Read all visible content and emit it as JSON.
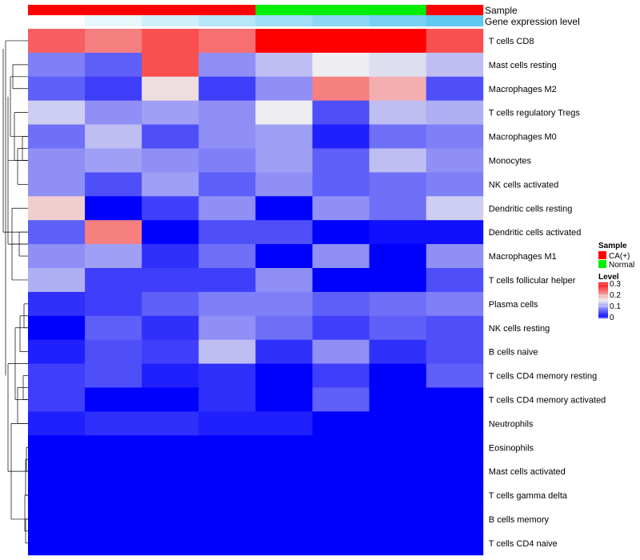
{
  "chart_data": {
    "type": "heatmap",
    "column_annotations": [
      {
        "label": "Sample"
      },
      {
        "label": "Gene expression level"
      }
    ],
    "columns": [
      {
        "sample": "CA(+)",
        "gene_expression_level": 0.0
      },
      {
        "sample": "CA(+)",
        "gene_expression_level": 0.15
      },
      {
        "sample": "CA(+)",
        "gene_expression_level": 0.3
      },
      {
        "sample": "CA(+)",
        "gene_expression_level": 0.45
      },
      {
        "sample": "Normal",
        "gene_expression_level": 0.6
      },
      {
        "sample": "Normal",
        "gene_expression_level": 0.72
      },
      {
        "sample": "Normal",
        "gene_expression_level": 0.85
      },
      {
        "sample": "CA(+)",
        "gene_expression_level": 1.0
      }
    ],
    "rows": [
      "T cells CD8",
      "Mast cells resting",
      "Macrophages M2",
      "T cells regulatory  Tregs",
      "Macrophages M0",
      "Monocytes",
      "NK cells activated",
      "Dendritic cells resting",
      "Dendritic cells activated",
      "Macrophages M1",
      "T cells follicular helper",
      "Plasma cells",
      "NK cells resting",
      "B cells naive",
      "T cells CD4 memory resting",
      "T cells CD4 memory activated",
      "Neutrophils",
      "Eosinophils",
      "Mast cells activated",
      "T cells gamma delta",
      "B cells memory",
      "T cells CD4 naive"
    ],
    "values": [
      [
        0.24,
        0.22,
        0.25,
        0.23,
        0.3,
        0.3,
        0.3,
        0.25
      ],
      [
        0.08,
        0.06,
        0.25,
        0.09,
        0.12,
        0.15,
        0.14,
        0.12
      ],
      [
        0.06,
        0.04,
        0.16,
        0.04,
        0.09,
        0.22,
        0.19,
        0.05
      ],
      [
        0.13,
        0.09,
        0.1,
        0.09,
        0.15,
        0.05,
        0.12,
        0.11
      ],
      [
        0.07,
        0.12,
        0.05,
        0.09,
        0.1,
        0.02,
        0.07,
        0.08
      ],
      [
        0.09,
        0.1,
        0.09,
        0.08,
        0.1,
        0.06,
        0.12,
        0.09
      ],
      [
        0.09,
        0.05,
        0.1,
        0.06,
        0.09,
        0.06,
        0.07,
        0.08
      ],
      [
        0.17,
        0.0,
        0.04,
        0.09,
        0.0,
        0.09,
        0.07,
        0.13
      ],
      [
        0.06,
        0.22,
        0.0,
        0.05,
        0.05,
        0.0,
        0.01,
        0.01
      ],
      [
        0.09,
        0.1,
        0.03,
        0.07,
        0.0,
        0.09,
        0.0,
        0.09
      ],
      [
        0.11,
        0.04,
        0.04,
        0.04,
        0.09,
        0.0,
        0.0,
        0.05
      ],
      [
        0.03,
        0.04,
        0.06,
        0.08,
        0.08,
        0.06,
        0.07,
        0.08
      ],
      [
        0.0,
        0.06,
        0.03,
        0.09,
        0.07,
        0.04,
        0.06,
        0.05
      ],
      [
        0.02,
        0.05,
        0.04,
        0.12,
        0.03,
        0.09,
        0.03,
        0.05
      ],
      [
        0.04,
        0.05,
        0.02,
        0.03,
        0.0,
        0.04,
        0.0,
        0.06
      ],
      [
        0.04,
        0.0,
        0.0,
        0.03,
        0.0,
        0.06,
        0.0,
        0.0
      ],
      [
        0.02,
        0.03,
        0.03,
        0.02,
        0.02,
        0.0,
        0.0,
        0.0
      ],
      [
        0.0,
        0.0,
        0.0,
        0.0,
        0.0,
        0.0,
        0.0,
        0.0
      ],
      [
        0.0,
        0.0,
        0.0,
        0.0,
        0.0,
        0.0,
        0.0,
        0.0
      ],
      [
        0.0,
        0.0,
        0.0,
        0.0,
        0.0,
        0.0,
        0.0,
        0.0
      ],
      [
        0.0,
        0.0,
        0.0,
        0.0,
        0.0,
        0.0,
        0.0,
        0.0
      ],
      [
        0.0,
        0.0,
        0.0,
        0.0,
        0.0,
        0.0,
        0.0,
        0.0
      ]
    ],
    "color_scale": {
      "min": 0,
      "mid": 0.15,
      "max": 0.3,
      "low_color": "#0000FF",
      "mid_color": "#EEEEF0",
      "high_color": "#FF0000"
    },
    "gene_scale": {
      "low_color": "#FFFFFF",
      "high_color": "#5FC8EE"
    },
    "dendrogram_side": "left",
    "legend": {
      "placement": "right",
      "sample_title": "Sample",
      "sample_items": [
        {
          "label": "CA(+)",
          "color": "#FF0000"
        },
        {
          "label": "Normal",
          "color": "#00EE00"
        }
      ],
      "level_title": "Level",
      "level_ticks": [
        "0.3",
        "0.2",
        "0.1",
        "0"
      ]
    }
  }
}
